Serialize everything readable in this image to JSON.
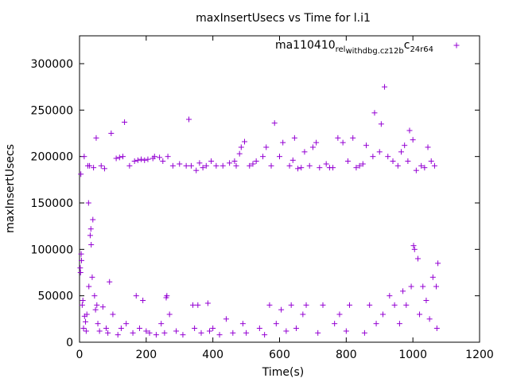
{
  "chart_data": {
    "type": "scatter",
    "title": "maxInsertUsecs vs Time for l.i1",
    "xlabel": "Time(s)",
    "ylabel": "maxInsertUsecs",
    "xlim": [
      0,
      1200
    ],
    "ylim": [
      0,
      330000
    ],
    "x_ticks": [
      0,
      200,
      400,
      600,
      800,
      1000,
      1200
    ],
    "y_ticks": [
      0,
      50000,
      100000,
      150000,
      200000,
      250000,
      300000
    ],
    "x_tick_labels": [
      "0",
      "200",
      "400",
      "600",
      "800",
      "1000",
      "1200"
    ],
    "y_tick_labels": [
      "0",
      "50000",
      "100000",
      "150000",
      "200000",
      "250000",
      "300000"
    ],
    "grid": false,
    "legend_position": "top-right",
    "marker": "+",
    "series": [
      {
        "name": "ma110410_rel_withdbg.cz12b_c24r64",
        "legend_parts": {
          "a": "ma110410",
          "b": "rel",
          "c": "withdbg.cz12b",
          "d": "c",
          "e": "24r64"
        },
        "color": "#9400d3",
        "points": [
          [
            2,
            80000
          ],
          [
            3,
            75000
          ],
          [
            4,
            181000
          ],
          [
            5,
            95000
          ],
          [
            6,
            88000
          ],
          [
            8,
            40000
          ],
          [
            10,
            45000
          ],
          [
            12,
            15000
          ],
          [
            14,
            200000
          ],
          [
            15,
            28000
          ],
          [
            18,
            22000
          ],
          [
            20,
            12000
          ],
          [
            22,
            30000
          ],
          [
            25,
            190000
          ],
          [
            27,
            150000
          ],
          [
            28,
            60000
          ],
          [
            30,
            190000
          ],
          [
            32,
            115000
          ],
          [
            34,
            122000
          ],
          [
            35,
            105000
          ],
          [
            38,
            70000
          ],
          [
            40,
            132000
          ],
          [
            42,
            188000
          ],
          [
            45,
            50000
          ],
          [
            48,
            35000
          ],
          [
            50,
            220000
          ],
          [
            52,
            40000
          ],
          [
            55,
            20000
          ],
          [
            60,
            12000
          ],
          [
            65,
            190000
          ],
          [
            70,
            38000
          ],
          [
            75,
            187000
          ],
          [
            80,
            15000
          ],
          [
            85,
            10000
          ],
          [
            90,
            65000
          ],
          [
            95,
            225000
          ],
          [
            100,
            30000
          ],
          [
            110,
            198000
          ],
          [
            115,
            8000
          ],
          [
            120,
            199000
          ],
          [
            125,
            15000
          ],
          [
            130,
            200000
          ],
          [
            135,
            237000
          ],
          [
            140,
            20000
          ],
          [
            150,
            190000
          ],
          [
            160,
            10000
          ],
          [
            165,
            195000
          ],
          [
            170,
            50000
          ],
          [
            175,
            196000
          ],
          [
            180,
            15000
          ],
          [
            185,
            197000
          ],
          [
            190,
            45000
          ],
          [
            195,
            196000
          ],
          [
            200,
            12000
          ],
          [
            205,
            197000
          ],
          [
            210,
            10000
          ],
          [
            220,
            198000
          ],
          [
            225,
            200000
          ],
          [
            230,
            8000
          ],
          [
            240,
            199000
          ],
          [
            245,
            20000
          ],
          [
            250,
            195000
          ],
          [
            255,
            10000
          ],
          [
            260,
            48000
          ],
          [
            262,
            50000
          ],
          [
            265,
            200000
          ],
          [
            270,
            30000
          ],
          [
            280,
            190000
          ],
          [
            290,
            12000
          ],
          [
            300,
            192000
          ],
          [
            310,
            8000
          ],
          [
            320,
            190000
          ],
          [
            328,
            240000
          ],
          [
            335,
            190000
          ],
          [
            340,
            40000
          ],
          [
            345,
            15000
          ],
          [
            350,
            185000
          ],
          [
            355,
            40000
          ],
          [
            360,
            193000
          ],
          [
            365,
            10000
          ],
          [
            370,
            188000
          ],
          [
            380,
            190000
          ],
          [
            385,
            42000
          ],
          [
            390,
            12000
          ],
          [
            395,
            195000
          ],
          [
            400,
            15000
          ],
          [
            410,
            190000
          ],
          [
            420,
            8000
          ],
          [
            430,
            190000
          ],
          [
            440,
            25000
          ],
          [
            450,
            193000
          ],
          [
            460,
            10000
          ],
          [
            465,
            195000
          ],
          [
            470,
            190000
          ],
          [
            480,
            203000
          ],
          [
            485,
            210000
          ],
          [
            490,
            20000
          ],
          [
            495,
            216000
          ],
          [
            500,
            10000
          ],
          [
            510,
            190000
          ],
          [
            520,
            192000
          ],
          [
            530,
            195000
          ],
          [
            540,
            15000
          ],
          [
            550,
            200000
          ],
          [
            555,
            8000
          ],
          [
            560,
            210000
          ],
          [
            570,
            40000
          ],
          [
            575,
            190000
          ],
          [
            585,
            236000
          ],
          [
            590,
            20000
          ],
          [
            600,
            200000
          ],
          [
            605,
            35000
          ],
          [
            610,
            215000
          ],
          [
            620,
            12000
          ],
          [
            630,
            190000
          ],
          [
            635,
            40000
          ],
          [
            640,
            196000
          ],
          [
            645,
            220000
          ],
          [
            650,
            15000
          ],
          [
            655,
            187000
          ],
          [
            665,
            188000
          ],
          [
            670,
            30000
          ],
          [
            675,
            205000
          ],
          [
            680,
            40000
          ],
          [
            690,
            190000
          ],
          [
            700,
            210000
          ],
          [
            710,
            215000
          ],
          [
            715,
            10000
          ],
          [
            720,
            188000
          ],
          [
            730,
            40000
          ],
          [
            740,
            192000
          ],
          [
            750,
            188000
          ],
          [
            760,
            188000
          ],
          [
            765,
            20000
          ],
          [
            775,
            220000
          ],
          [
            780,
            30000
          ],
          [
            790,
            215000
          ],
          [
            800,
            12000
          ],
          [
            805,
            195000
          ],
          [
            810,
            40000
          ],
          [
            820,
            220000
          ],
          [
            830,
            188000
          ],
          [
            840,
            190000
          ],
          [
            850,
            192000
          ],
          [
            855,
            10000
          ],
          [
            860,
            212000
          ],
          [
            870,
            40000
          ],
          [
            880,
            200000
          ],
          [
            885,
            247000
          ],
          [
            890,
            20000
          ],
          [
            900,
            205000
          ],
          [
            905,
            235000
          ],
          [
            910,
            30000
          ],
          [
            915,
            275000
          ],
          [
            925,
            200000
          ],
          [
            930,
            50000
          ],
          [
            940,
            195000
          ],
          [
            945,
            40000
          ],
          [
            955,
            190000
          ],
          [
            960,
            20000
          ],
          [
            965,
            205000
          ],
          [
            970,
            55000
          ],
          [
            975,
            212000
          ],
          [
            980,
            40000
          ],
          [
            985,
            195000
          ],
          [
            990,
            228000
          ],
          [
            995,
            60000
          ],
          [
            1000,
            218000
          ],
          [
            1002,
            104000
          ],
          [
            1005,
            100000
          ],
          [
            1010,
            185000
          ],
          [
            1015,
            90000
          ],
          [
            1020,
            30000
          ],
          [
            1025,
            190000
          ],
          [
            1030,
            60000
          ],
          [
            1035,
            188000
          ],
          [
            1040,
            45000
          ],
          [
            1045,
            210000
          ],
          [
            1050,
            25000
          ],
          [
            1055,
            195000
          ],
          [
            1060,
            70000
          ],
          [
            1065,
            190000
          ],
          [
            1070,
            60000
          ],
          [
            1075,
            85000
          ],
          [
            1072,
            15000
          ]
        ]
      }
    ]
  }
}
